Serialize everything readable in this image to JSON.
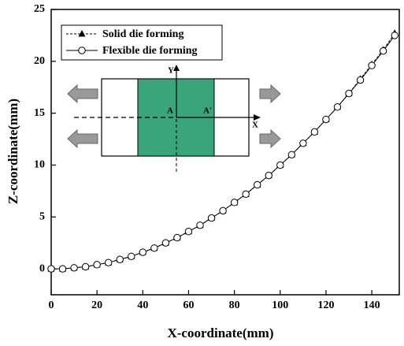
{
  "chart_data": {
    "type": "line",
    "x_label": "X-coordinate(mm)",
    "y_label": "Z-coordinate(mm)",
    "x": [
      0,
      5,
      10,
      15,
      20,
      25,
      30,
      35,
      40,
      45,
      50,
      55,
      60,
      65,
      70,
      75,
      80,
      85,
      90,
      95,
      100,
      105,
      110,
      115,
      120,
      125,
      130,
      135,
      140,
      145,
      150
    ],
    "series": [
      {
        "name": "Solid die forming",
        "color": "#000000",
        "line_style": "dashed",
        "marker": "triangle",
        "values": [
          0,
          0,
          0.1,
          0.2,
          0.4,
          0.6,
          0.9,
          1.2,
          1.6,
          2,
          2.5,
          3,
          3.6,
          4.2,
          4.9,
          5.6,
          6.4,
          7.2,
          8.1,
          9,
          10,
          11,
          12.1,
          13.2,
          14.4,
          15.6,
          16.9,
          18.3,
          19.7,
          21.1,
          22.7
        ]
      },
      {
        "name": "Flexible die forming",
        "color": "#000000",
        "line_style": "solid",
        "marker": "circle",
        "values": [
          0,
          0,
          0.1,
          0.2,
          0.4,
          0.6,
          0.9,
          1.2,
          1.6,
          2,
          2.5,
          3,
          3.6,
          4.2,
          4.9,
          5.6,
          6.4,
          7.2,
          8.1,
          9,
          10,
          11,
          12.1,
          13.2,
          14.4,
          15.6,
          16.9,
          18.2,
          19.6,
          21,
          22.5
        ]
      }
    ],
    "xlim": [
      0,
      152
    ],
    "ylim": [
      -2.5,
      25
    ],
    "xticks": [
      0,
      20,
      40,
      60,
      80,
      100,
      120,
      140
    ],
    "yticks": [
      0,
      5,
      10,
      15,
      20,
      25
    ],
    "legend": "upper left",
    "annotations": [
      "Y",
      "X",
      "A",
      "A'"
    ]
  }
}
